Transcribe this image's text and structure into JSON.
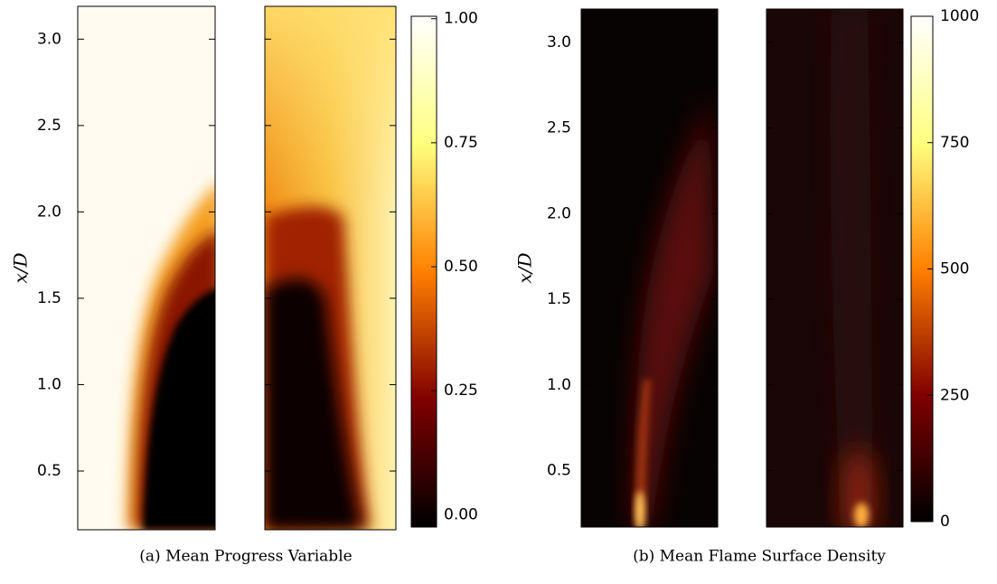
{
  "chart_data": [
    {
      "type": "heatmap",
      "caption": "(a) Mean Progress Variable",
      "y_label": "x/D",
      "ylim": [
        0.16,
        3.19
      ],
      "yticks": [
        0.5,
        {
          "value": 1,
          "label": "1.0"
        },
        1.5,
        {
          "value": 2,
          "label": "2.0"
        },
        2.5,
        {
          "value": 3,
          "label": "3.0"
        }
      ],
      "colormap": "afmhot",
      "clim": [
        -0.025,
        1.005
      ],
      "cticks": [
        {
          "value": 0,
          "label": "0.00"
        },
        0.25,
        {
          "value": 0.5,
          "label": "0.50"
        },
        0.75,
        {
          "value": 1,
          "label": "1.00"
        }
      ]
    },
    {
      "type": "heatmap",
      "caption": "(b) Mean Flame Surface Density",
      "y_label": "x/D",
      "ylim": [
        0.17,
        3.195
      ],
      "yticks": [
        0.5,
        {
          "value": 1,
          "label": "1.0"
        },
        1.5,
        {
          "value": 2,
          "label": "2.0"
        },
        2.5,
        {
          "value": 3,
          "label": "3.0"
        }
      ],
      "colormap": "afmhot",
      "clim": [
        0,
        1000
      ],
      "cticks": [
        0,
        250,
        500,
        750,
        1000
      ]
    }
  ]
}
